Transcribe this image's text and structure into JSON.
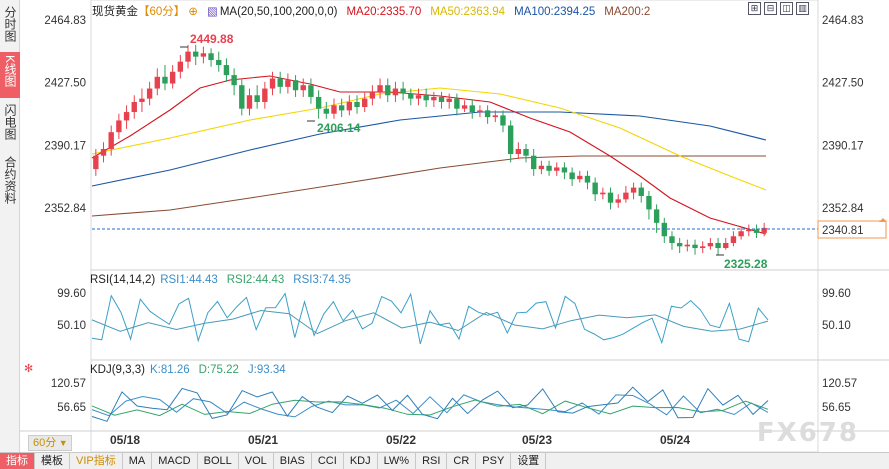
{
  "side_tabs": [
    "分时图",
    "K线图",
    "闪电图",
    "合约资料"
  ],
  "header": {
    "symbol": "现货黄金",
    "period_tag": "【60分】",
    "ma_label": "MA(20,50,100,200,0,0)",
    "ma20": "MA20:2335.70",
    "ma50": "MA50:2363.94",
    "ma100": "MA100:2394.25",
    "ma200": "MA200:2"
  },
  "price_axis": {
    "ticks": [
      "2464.83",
      "2427.50",
      "2390.17",
      "2352.84"
    ],
    "current": "2340.81",
    "high_label": "2449.88",
    "low_label": "2406.14",
    "low2_label": "2325.28"
  },
  "rsi": {
    "title": "RSI(14,14,2)",
    "rsi1": "RSI1:44.43",
    "rsi2": "RSI2:44.43",
    "rsi3": "RSI3:74.35",
    "ticks": [
      "99.60",
      "50.10"
    ]
  },
  "kdj": {
    "title": "KDJ(9,3,3)",
    "k": "K:81.26",
    "d": "D:75.22",
    "j": "J:93.34",
    "ticks": [
      "120.57",
      "56.65"
    ]
  },
  "dates": [
    "05/18",
    "05/21",
    "05/22",
    "05/23",
    "05/24"
  ],
  "period_button": "60分",
  "toolbar": [
    "指标",
    "模板",
    "VIP指标",
    "MA",
    "MACD",
    "BOLL",
    "VOL",
    "BIAS",
    "CCI",
    "KDJ",
    "LW%",
    "RSI",
    "CR",
    "PSY",
    "设置"
  ],
  "watermark": "FX678",
  "colors": {
    "up": "#e8414e",
    "down": "#2ca05a",
    "ma20": "#d4121b",
    "ma50": "#f3d600",
    "ma100": "#1b55a3",
    "ma200": "#8a4b34",
    "current_line": "#1e6fd2",
    "accent": "#ee5e64"
  }
}
